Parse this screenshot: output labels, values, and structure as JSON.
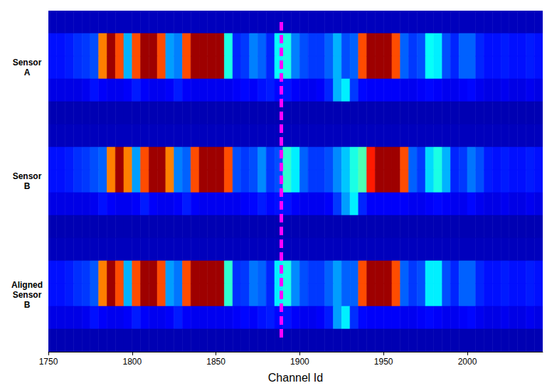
{
  "chart_data": {
    "type": "heatmap",
    "xlabel": "Channel Id",
    "xlim": [
      1750,
      2045
    ],
    "xticks": [
      1750,
      1800,
      1850,
      1900,
      1950,
      2000
    ],
    "x_bins": [
      1750,
      1755,
      1760,
      1765,
      1770,
      1775,
      1780,
      1785,
      1790,
      1795,
      1800,
      1805,
      1810,
      1815,
      1820,
      1825,
      1830,
      1835,
      1840,
      1845,
      1850,
      1855,
      1860,
      1865,
      1870,
      1875,
      1880,
      1885,
      1890,
      1895,
      1900,
      1905,
      1910,
      1915,
      1920,
      1925,
      1930,
      1935,
      1940,
      1945,
      1950,
      1955,
      1960,
      1965,
      1970,
      1975,
      1980,
      1985,
      1990,
      1995,
      2000,
      2005,
      2010,
      2015,
      2020,
      2025,
      2030,
      2035,
      2040,
      2045
    ],
    "y_categories": [
      null,
      null,
      "Sensor A",
      null,
      null,
      null,
      null,
      "Sensor B",
      null,
      null,
      null,
      null,
      "Aligned Sensor B",
      null,
      null
    ],
    "color": "jet",
    "color_range": [
      0,
      100
    ],
    "cells": [
      [
        6,
        6,
        6,
        6,
        6,
        6,
        6,
        6,
        6,
        6,
        6,
        6,
        6,
        6,
        6,
        6,
        6,
        6,
        6,
        6,
        6,
        6,
        6,
        6,
        6,
        6,
        6,
        6,
        6,
        6,
        6,
        6,
        6,
        6,
        6,
        6,
        6,
        6,
        6,
        6,
        6,
        6,
        6,
        6,
        6,
        6,
        6,
        6,
        6,
        6,
        6,
        6,
        6,
        6,
        6,
        6,
        6,
        6,
        6
      ],
      [
        14,
        14,
        15,
        17,
        18,
        20,
        75,
        97,
        80,
        30,
        80,
        97,
        97,
        80,
        28,
        25,
        80,
        97,
        97,
        97,
        97,
        40,
        16,
        18,
        25,
        22,
        16,
        38,
        40,
        25,
        20,
        18,
        18,
        22,
        30,
        20,
        22,
        80,
        97,
        97,
        97,
        80,
        22,
        18,
        20,
        38,
        36,
        20,
        16,
        22,
        22,
        16,
        14,
        14,
        15,
        14,
        14,
        15,
        14
      ],
      [
        14,
        14,
        15,
        17,
        18,
        20,
        75,
        97,
        80,
        30,
        80,
        97,
        97,
        80,
        28,
        25,
        80,
        97,
        97,
        97,
        97,
        40,
        16,
        18,
        25,
        22,
        16,
        38,
        40,
        25,
        20,
        18,
        18,
        22,
        30,
        20,
        22,
        80,
        97,
        97,
        97,
        80,
        22,
        18,
        20,
        38,
        36,
        20,
        16,
        22,
        22,
        16,
        14,
        14,
        15,
        14,
        14,
        15,
        14
      ],
      [
        10,
        10,
        10,
        10,
        11,
        14,
        12,
        11,
        11,
        12,
        15,
        12,
        11,
        11,
        12,
        15,
        12,
        11,
        11,
        11,
        11,
        11,
        12,
        13,
        12,
        14,
        15,
        13,
        14,
        12,
        11,
        11,
        12,
        16,
        30,
        36,
        18,
        13,
        12,
        12,
        12,
        12,
        11,
        11,
        12,
        13,
        12,
        11,
        11,
        12,
        13,
        11,
        10,
        10,
        11,
        10,
        10,
        11,
        10
      ],
      [
        5,
        5,
        5,
        5,
        5,
        5,
        5,
        5,
        5,
        5,
        5,
        5,
        5,
        5,
        5,
        5,
        5,
        5,
        5,
        5,
        5,
        5,
        5,
        5,
        5,
        5,
        5,
        5,
        5,
        5,
        5,
        5,
        5,
        5,
        5,
        5,
        5,
        5,
        5,
        5,
        5,
        5,
        5,
        5,
        5,
        5,
        5,
        5,
        5,
        5,
        5,
        5,
        5,
        5,
        5,
        5,
        5,
        5,
        5
      ],
      [
        6,
        6,
        6,
        6,
        6,
        6,
        6,
        6,
        6,
        6,
        6,
        6,
        6,
        6,
        6,
        6,
        6,
        6,
        6,
        6,
        6,
        6,
        6,
        6,
        6,
        6,
        6,
        6,
        6,
        6,
        6,
        6,
        6,
        6,
        6,
        6,
        6,
        6,
        6,
        6,
        6,
        6,
        6,
        6,
        6,
        6,
        6,
        6,
        6,
        6,
        6,
        6,
        6,
        6,
        6,
        6,
        6,
        6,
        6
      ],
      [
        14,
        14,
        15,
        17,
        18,
        20,
        22,
        75,
        97,
        75,
        28,
        80,
        97,
        97,
        75,
        25,
        22,
        80,
        97,
        97,
        97,
        80,
        20,
        18,
        20,
        26,
        18,
        20,
        42,
        36,
        22,
        18,
        18,
        20,
        26,
        32,
        40,
        45,
        85,
        97,
        97,
        97,
        80,
        22,
        18,
        34,
        40,
        30,
        16,
        18,
        24,
        20,
        15,
        14,
        15,
        14,
        14,
        15,
        14
      ],
      [
        14,
        14,
        15,
        17,
        18,
        20,
        22,
        75,
        97,
        75,
        28,
        80,
        97,
        97,
        75,
        25,
        22,
        80,
        97,
        97,
        97,
        80,
        20,
        18,
        20,
        26,
        18,
        20,
        42,
        36,
        22,
        18,
        18,
        20,
        26,
        32,
        40,
        45,
        85,
        97,
        97,
        97,
        80,
        22,
        18,
        34,
        40,
        30,
        16,
        18,
        24,
        20,
        15,
        14,
        15,
        14,
        14,
        15,
        14
      ],
      [
        10,
        10,
        10,
        10,
        10,
        11,
        14,
        12,
        11,
        11,
        12,
        15,
        12,
        11,
        11,
        12,
        15,
        12,
        11,
        11,
        11,
        11,
        11,
        12,
        13,
        15,
        13,
        14,
        14,
        12,
        11,
        11,
        11,
        12,
        18,
        28,
        36,
        16,
        12,
        12,
        12,
        12,
        12,
        11,
        11,
        12,
        13,
        12,
        11,
        11,
        13,
        11,
        10,
        10,
        11,
        10,
        10,
        11,
        10
      ],
      [
        5,
        5,
        5,
        5,
        5,
        5,
        5,
        5,
        5,
        5,
        5,
        5,
        5,
        5,
        5,
        5,
        5,
        5,
        5,
        5,
        5,
        5,
        5,
        5,
        5,
        5,
        5,
        5,
        5,
        5,
        5,
        5,
        5,
        5,
        5,
        5,
        5,
        5,
        5,
        5,
        5,
        5,
        5,
        5,
        5,
        5,
        5,
        5,
        5,
        5,
        5,
        5,
        5,
        5,
        5,
        5,
        5,
        5,
        5
      ],
      [
        6,
        6,
        6,
        6,
        6,
        6,
        6,
        6,
        6,
        6,
        6,
        6,
        6,
        6,
        6,
        6,
        6,
        6,
        6,
        6,
        6,
        6,
        6,
        6,
        6,
        6,
        6,
        6,
        6,
        6,
        6,
        6,
        6,
        6,
        6,
        6,
        6,
        6,
        6,
        6,
        6,
        6,
        6,
        6,
        6,
        6,
        6,
        6,
        6,
        6,
        6,
        6,
        6,
        6,
        6,
        6,
        6,
        6,
        6
      ],
      [
        14,
        14,
        15,
        17,
        18,
        21,
        75,
        97,
        80,
        30,
        80,
        97,
        97,
        80,
        28,
        24,
        80,
        97,
        97,
        97,
        97,
        42,
        17,
        18,
        24,
        22,
        16,
        36,
        40,
        26,
        20,
        18,
        18,
        22,
        28,
        22,
        22,
        80,
        97,
        97,
        97,
        80,
        22,
        18,
        20,
        36,
        36,
        20,
        16,
        22,
        22,
        16,
        14,
        14,
        15,
        14,
        14,
        15,
        14
      ],
      [
        14,
        14,
        15,
        17,
        18,
        21,
        75,
        97,
        80,
        30,
        80,
        97,
        97,
        80,
        28,
        24,
        80,
        97,
        97,
        97,
        97,
        42,
        17,
        18,
        24,
        22,
        16,
        36,
        40,
        26,
        20,
        18,
        18,
        22,
        28,
        22,
        22,
        80,
        97,
        97,
        97,
        80,
        22,
        18,
        20,
        36,
        36,
        20,
        16,
        22,
        22,
        16,
        14,
        14,
        15,
        14,
        14,
        15,
        14
      ],
      [
        10,
        10,
        10,
        10,
        11,
        14,
        12,
        11,
        11,
        12,
        15,
        12,
        11,
        11,
        12,
        15,
        12,
        11,
        11,
        11,
        11,
        11,
        12,
        13,
        12,
        14,
        15,
        13,
        14,
        12,
        11,
        11,
        12,
        15,
        28,
        36,
        17,
        13,
        12,
        12,
        12,
        12,
        11,
        11,
        12,
        13,
        12,
        11,
        11,
        12,
        13,
        11,
        10,
        10,
        11,
        10,
        10,
        11,
        10
      ],
      [
        5,
        5,
        5,
        5,
        5,
        5,
        5,
        5,
        5,
        5,
        5,
        5,
        5,
        5,
        5,
        5,
        5,
        5,
        5,
        5,
        5,
        5,
        5,
        5,
        5,
        5,
        5,
        5,
        5,
        5,
        5,
        5,
        5,
        5,
        5,
        5,
        5,
        5,
        5,
        5,
        5,
        5,
        5,
        5,
        5,
        5,
        5,
        5,
        5,
        5,
        5,
        5,
        5,
        5,
        5,
        5,
        5,
        5,
        5
      ]
    ],
    "annotations": [
      {
        "type": "vline",
        "x": 1889,
        "color": "#ff00ff",
        "line_style": "dashed"
      }
    ]
  }
}
